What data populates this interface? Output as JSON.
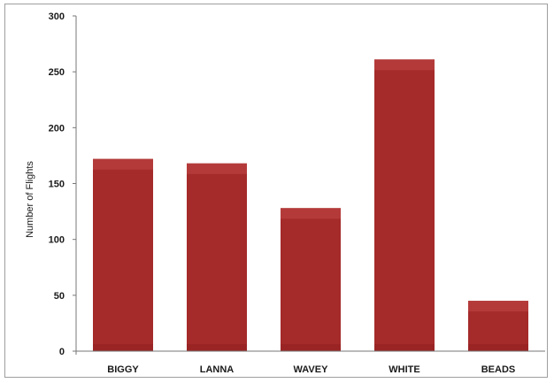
{
  "chart_data": {
    "type": "bar",
    "title": "",
    "xlabel": "",
    "ylabel": "Number of Flights",
    "categories": [
      "BIGGY",
      "LANNA",
      "WAVEY",
      "WHITE",
      "BEADS"
    ],
    "values": [
      172,
      168,
      128,
      261,
      45
    ],
    "ylim": [
      0,
      300
    ],
    "yticks": [
      0,
      50,
      100,
      150,
      200,
      250,
      300
    ],
    "grid": false,
    "legend": "none",
    "bar_color": "#a52a2a",
    "bar_highlight_color": "#b43a3a",
    "axis_color": "#777777"
  }
}
